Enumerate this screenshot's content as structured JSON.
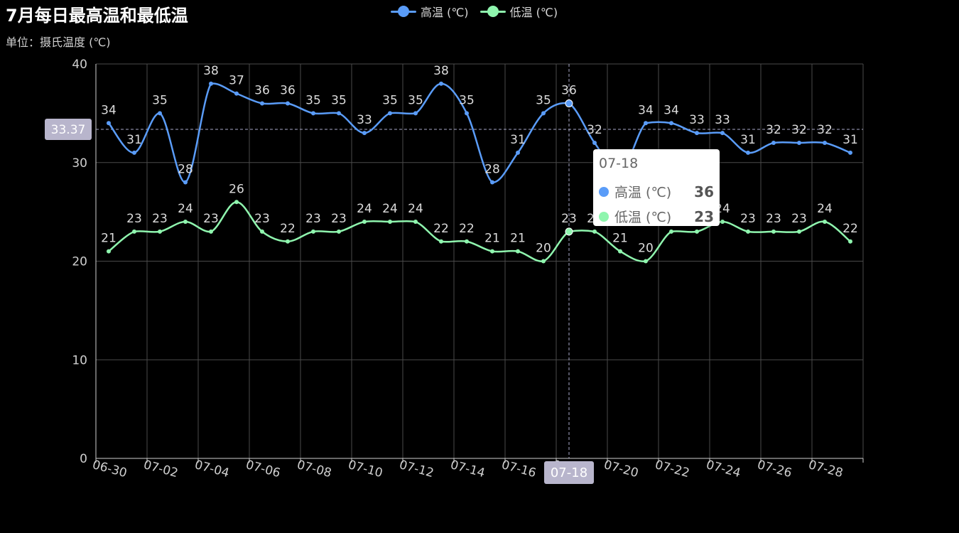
{
  "header": {
    "title": "7月每日最高温和最低温",
    "subtitle": "单位：摄氏温度 (℃)"
  },
  "legend": [
    {
      "label": "高温 (℃)",
      "color": "#5a9cf8"
    },
    {
      "label": "低温 (℃)",
      "color": "#8ff5ae"
    }
  ],
  "tooltip": {
    "title": "07-18",
    "rows": [
      {
        "label": "高温 (℃)",
        "value": "36",
        "color": "#5a9cf8"
      },
      {
        "label": "低温 (℃)",
        "value": "23",
        "color": "#8ff5ae"
      }
    ]
  },
  "crosshair": {
    "y_value": "33.37",
    "x_label": "07-18"
  },
  "chart_data": {
    "type": "line",
    "x": [
      "06-30",
      "07-01",
      "07-02",
      "07-03",
      "07-04",
      "07-05",
      "07-06",
      "07-07",
      "07-08",
      "07-09",
      "07-10",
      "07-11",
      "07-12",
      "07-13",
      "07-14",
      "07-15",
      "07-16",
      "07-17",
      "07-18",
      "07-19",
      "07-20",
      "07-21",
      "07-22",
      "07-23",
      "07-24",
      "07-25",
      "07-26",
      "07-27",
      "07-28",
      "07-29"
    ],
    "x_tick_labels": [
      "06-30",
      "07-02",
      "07-04",
      "07-06",
      "07-08",
      "07-10",
      "07-12",
      "07-14",
      "07-16",
      "07-18",
      "07-20",
      "07-22",
      "07-24",
      "07-26",
      "07-28"
    ],
    "y_ticks": [
      0,
      10,
      20,
      30,
      40
    ],
    "ylim": [
      0,
      40
    ],
    "grid": true,
    "series": [
      {
        "name": "高温 (℃)",
        "color": "#5a9cf8",
        "values": [
          34,
          31,
          35,
          28,
          38,
          37,
          36,
          36,
          35,
          35,
          33,
          35,
          35,
          38,
          35,
          28,
          31,
          35,
          36,
          32,
          29,
          34,
          34,
          33,
          33,
          31,
          32,
          32,
          32,
          31
        ]
      },
      {
        "name": "低温 (℃)",
        "color": "#8ff5ae",
        "values": [
          21,
          23,
          23,
          24,
          23,
          26,
          23,
          22,
          23,
          23,
          24,
          24,
          24,
          22,
          22,
          21,
          21,
          20,
          23,
          23,
          21,
          20,
          23,
          23,
          24,
          23,
          23,
          23,
          24,
          22
        ]
      }
    ]
  }
}
